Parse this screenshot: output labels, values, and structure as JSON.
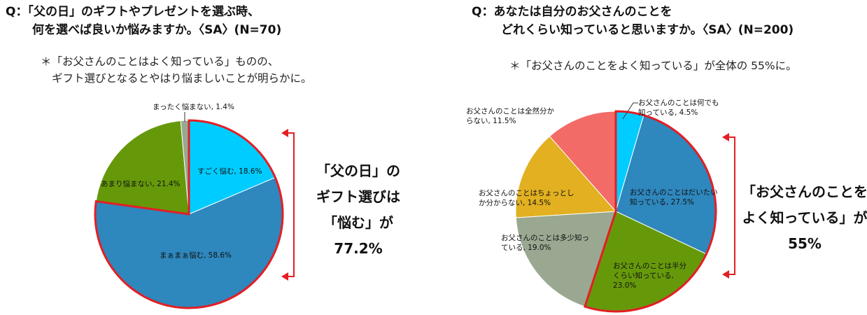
{
  "left": {
    "title_line1": "Q：「父の日」のギフトやプレゼントを選ぶ時、",
    "title_line2": "何を選べば良いか悩みますか。〈SA〉(N=70)",
    "note_line1": "＊「お父さんのことはよく知っている」ものの、",
    "note_line2": "ギフト選びとなるとやはり悩ましいことが明らかに。",
    "callout": [
      "「父の日」の",
      "ギフト選びは",
      "「悩む」が",
      "77.2%"
    ]
  },
  "right": {
    "title_line1": "Q：あなたは自分のお父さんのことを",
    "title_line2": "どれくらい知っていると思いますか。〈SA〉(N=200)",
    "note": "＊「お父さんのことをよく知っている」が全体の 55%に。",
    "callout": [
      "「お父さんのことを",
      "よく知っている」が",
      "55%"
    ]
  },
  "colors": {
    "accent_red": "#e31e24",
    "cyan": "#00ccff",
    "blue": "#2e87bd",
    "green": "#66990a",
    "gray": "#9aa891",
    "gold": "#e2b020",
    "salmon": "#f26b66"
  },
  "chart_data": [
    {
      "type": "pie",
      "title": "",
      "slices": [
        {
          "label": "すごく悩む",
          "value": 18.6,
          "color": "#00ccff",
          "text": "すごく悩む, 18.6%",
          "emphasized": true
        },
        {
          "label": "まぁまぁ悩む",
          "value": 58.6,
          "color": "#2e87bd",
          "text": "まぁまぁ悩む, 58.6%",
          "emphasized": true
        },
        {
          "label": "あまり悩まない",
          "value": 21.4,
          "color": "#66990a",
          "text": "あまり悩まない, 21.4%",
          "emphasized": false
        },
        {
          "label": "まったく悩まない",
          "value": 1.4,
          "color": "#9aa891",
          "text": "まったく悩まない, 1.4%",
          "emphasized": false
        }
      ]
    },
    {
      "type": "pie",
      "title": "",
      "slices": [
        {
          "label": "お父さんのことは何でも知っている",
          "value": 4.5,
          "color": "#00ccff",
          "text": [
            "お父さんのことは何でも",
            "知っている, 4.5%"
          ],
          "emphasized": true
        },
        {
          "label": "お父さんのことはだいたい知っている",
          "value": 27.5,
          "color": "#2e87bd",
          "text": [
            "お父さんのことはだいたい",
            "知っている, 27.5%"
          ],
          "emphasized": true
        },
        {
          "label": "お父さんのことは半分くらい知っている",
          "value": 23.0,
          "color": "#66990a",
          "text": [
            "お父さんのことは半分",
            "くらい知っている,",
            "23.0%"
          ],
          "emphasized": true
        },
        {
          "label": "お父さんのことは多少知っている",
          "value": 19.0,
          "color": "#9aa891",
          "text": [
            "お父さんのことは多少知っ",
            "ている, 19.0%"
          ],
          "emphasized": false
        },
        {
          "label": "お父さんのことはちょっとしか分からない",
          "value": 14.5,
          "color": "#e2b020",
          "text": [
            "お父さんのことはちょっとし",
            "か分からない, 14.5%"
          ],
          "emphasized": false
        },
        {
          "label": "お父さんのことは全然分からない",
          "value": 11.5,
          "color": "#f26b66",
          "text": [
            "お父さんのことは全然分か",
            "らない, 11.5%"
          ],
          "emphasized": false
        }
      ]
    }
  ]
}
